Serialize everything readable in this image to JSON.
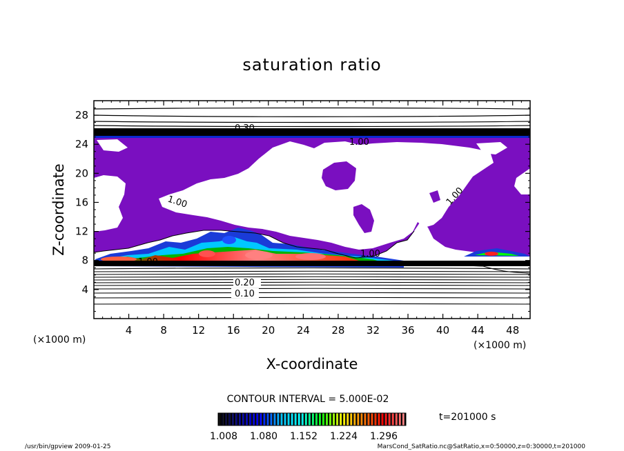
{
  "chart_data": {
    "type": "heatmap",
    "title": "saturation ratio",
    "xlabel": "X-coordinate",
    "ylabel": "Z-coordinate",
    "x_unit": "(×1000 m)",
    "y_unit": "(×1000 m)",
    "xlim": [
      0,
      50
    ],
    "ylim": [
      0,
      30
    ],
    "x_ticks": [
      "4",
      "8",
      "12",
      "16",
      "20",
      "24",
      "28",
      "32",
      "36",
      "40",
      "44",
      "48"
    ],
    "y_ticks": [
      "4",
      "8",
      "12",
      "16",
      "20",
      "24",
      "28"
    ],
    "contour_interval_text": "CONTOUR INTERVAL = 5.000E-02",
    "contour_labels": [
      "0.10",
      "0.20",
      "1.00",
      "1.00",
      "1.00",
      "1.00",
      "1.00",
      "0.30"
    ],
    "time_text": "t=201000 s",
    "colorbar": {
      "ticks": [
        "1.008",
        "1.080",
        "1.152",
        "1.224",
        "1.296"
      ],
      "colors": [
        "#000000",
        "#00008b",
        "#0000ff",
        "#00bfff",
        "#00ffff",
        "#00ff00",
        "#ffff00",
        "#ff8000",
        "#ff0000",
        "#ff8080"
      ]
    },
    "colors": {
      "supersaturated_fill": "#7a0fc0",
      "contour_line": "#000000"
    },
    "grid": false
  },
  "footer": {
    "left": "/usr/bin/gpview  2009-01-25",
    "right": "MarsCond_SatRatio.nc@SatRatio,x=0:50000,z=0:30000,t=201000"
  }
}
